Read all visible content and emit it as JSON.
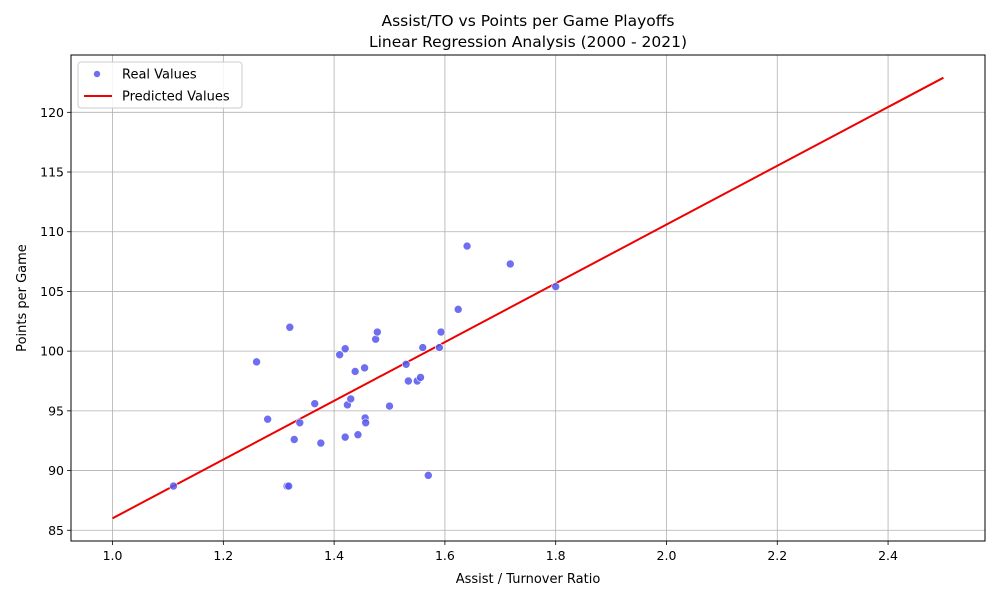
{
  "chart_data": {
    "type": "scatter",
    "title": "Assist/TO vs Points per Game Playoffs",
    "subtitle": "Linear Regression Analysis (2000 - 2021)",
    "xlabel": "Assist / Turnover Ratio",
    "ylabel": "Points per Game",
    "xlim": [
      0.925,
      2.575
    ],
    "ylim": [
      84.1,
      124.8
    ],
    "x_ticks": [
      "1.0",
      "1.2",
      "1.4",
      "1.6",
      "1.8",
      "2.0",
      "2.2",
      "2.4"
    ],
    "y_ticks": [
      "85",
      "90",
      "95",
      "100",
      "105",
      "110",
      "115",
      "120"
    ],
    "grid": true,
    "legend_position": "upper-left",
    "series": [
      {
        "name": "Real Values",
        "kind": "scatter",
        "color": "#5555ee",
        "points": [
          {
            "x": 1.11,
            "y": 88.7
          },
          {
            "x": 1.26,
            "y": 99.1
          },
          {
            "x": 1.28,
            "y": 94.3
          },
          {
            "x": 1.315,
            "y": 88.7
          },
          {
            "x": 1.318,
            "y": 88.7
          },
          {
            "x": 1.32,
            "y": 102.0
          },
          {
            "x": 1.328,
            "y": 92.6
          },
          {
            "x": 1.338,
            "y": 94.0
          },
          {
            "x": 1.365,
            "y": 95.6
          },
          {
            "x": 1.376,
            "y": 92.3
          },
          {
            "x": 1.41,
            "y": 99.7
          },
          {
            "x": 1.42,
            "y": 100.2
          },
          {
            "x": 1.42,
            "y": 92.8
          },
          {
            "x": 1.424,
            "y": 95.5
          },
          {
            "x": 1.43,
            "y": 96.0
          },
          {
            "x": 1.438,
            "y": 98.3
          },
          {
            "x": 1.443,
            "y": 93.0
          },
          {
            "x": 1.455,
            "y": 98.6
          },
          {
            "x": 1.456,
            "y": 94.4
          },
          {
            "x": 1.457,
            "y": 94.0
          },
          {
            "x": 1.475,
            "y": 101.0
          },
          {
            "x": 1.478,
            "y": 101.6
          },
          {
            "x": 1.5,
            "y": 95.4
          },
          {
            "x": 1.53,
            "y": 98.9
          },
          {
            "x": 1.534,
            "y": 97.5
          },
          {
            "x": 1.55,
            "y": 97.5
          },
          {
            "x": 1.556,
            "y": 97.8
          },
          {
            "x": 1.56,
            "y": 100.3
          },
          {
            "x": 1.57,
            "y": 89.6
          },
          {
            "x": 1.59,
            "y": 100.3
          },
          {
            "x": 1.593,
            "y": 101.6
          },
          {
            "x": 1.624,
            "y": 103.5
          },
          {
            "x": 1.64,
            "y": 108.8
          },
          {
            "x": 1.718,
            "y": 107.3
          },
          {
            "x": 1.8,
            "y": 105.4
          }
        ]
      },
      {
        "name": "Predicted Values",
        "kind": "line",
        "color": "#ee0000",
        "points": [
          {
            "x": 1.0,
            "y": 86.0
          },
          {
            "x": 2.5,
            "y": 122.9
          }
        ]
      }
    ]
  }
}
